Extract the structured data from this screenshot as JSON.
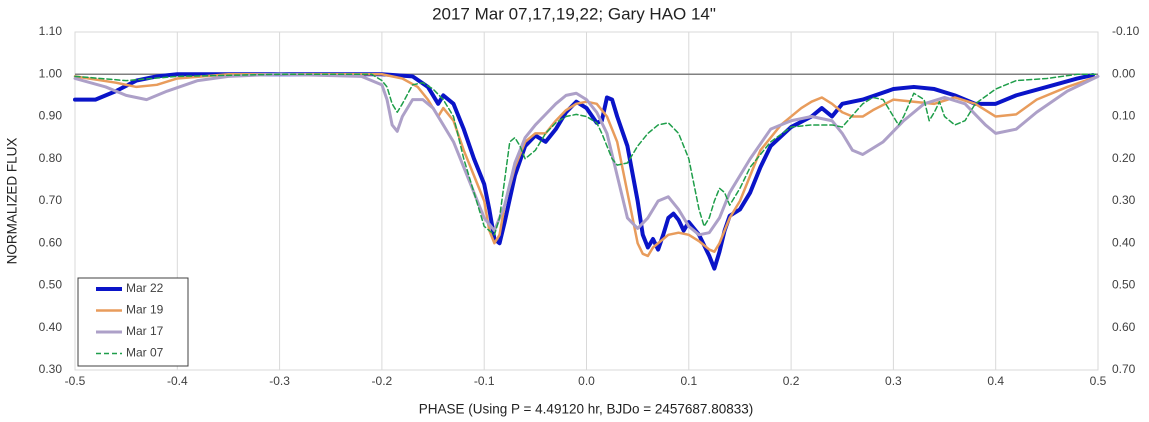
{
  "chart_data": {
    "type": "line",
    "title": "2017 Mar 07,17,19,22; Gary HAO 14\"",
    "x_label": "PHASE (Using P = 4.49120 hr, BJDo = 2457687.80833)",
    "y_label": "NORMALIZED FLUX",
    "xlim": [
      -0.5,
      0.5
    ],
    "xticks": [
      -0.5,
      -0.4,
      -0.3,
      -0.2,
      -0.1,
      {
        "value": 0,
        "label": "0.0"
      },
      0.1,
      0.2,
      0.3,
      0.4,
      0.5
    ],
    "ylim": [
      0.3,
      1.1
    ],
    "yticks": [
      {
        "value": 0.3,
        "label": "0.30"
      },
      {
        "value": 0.4,
        "label": "0.40"
      },
      {
        "value": 0.5,
        "label": "0.50"
      },
      {
        "value": 0.6,
        "label": "0.60"
      },
      {
        "value": 0.7,
        "label": "0.70"
      },
      {
        "value": 0.8,
        "label": "0.80"
      },
      {
        "value": 0.9,
        "label": "0.90"
      },
      {
        "value": 1.0,
        "label": "1.00"
      },
      {
        "value": 1.1,
        "label": "1.10"
      }
    ],
    "y2lim": [
      0.7,
      -0.1
    ],
    "y2ticks": [
      {
        "value": 0.7,
        "label": "0.70"
      },
      {
        "value": 0.6,
        "label": "0.60"
      },
      {
        "value": 0.5,
        "label": "0.50"
      },
      {
        "value": 0.4,
        "label": "0.40"
      },
      {
        "value": 0.3,
        "label": "0.30"
      },
      {
        "value": 0.2,
        "label": "0.20"
      },
      {
        "value": 0.1,
        "label": "0.10"
      },
      {
        "value": 0,
        "label": "0.00"
      },
      {
        "value": -0.1,
        "label": "-0.10"
      }
    ],
    "grid": "x",
    "hline": 1.0,
    "legend": "lower left",
    "series": [
      {
        "name": "Mar 22",
        "color": "#0a14c8",
        "line_width": 4,
        "dashed": false,
        "x": [
          -0.5,
          -0.48,
          -0.46,
          -0.44,
          -0.42,
          -0.4,
          -0.3,
          -0.2,
          -0.17,
          -0.155,
          -0.145,
          -0.14,
          -0.13,
          -0.12,
          -0.11,
          -0.1,
          -0.095,
          -0.09,
          -0.085,
          -0.08,
          -0.07,
          -0.06,
          -0.05,
          -0.04,
          -0.03,
          -0.02,
          -0.01,
          0,
          0.01,
          0.015,
          0.02,
          0.025,
          0.03,
          0.04,
          0.05,
          0.055,
          0.06,
          0.065,
          0.07,
          0.075,
          0.08,
          0.085,
          0.09,
          0.095,
          0.1,
          0.11,
          0.12,
          0.125,
          0.13,
          0.135,
          0.14,
          0.15,
          0.16,
          0.17,
          0.18,
          0.2,
          0.22,
          0.23,
          0.24,
          0.25,
          0.27,
          0.3,
          0.32,
          0.34,
          0.36,
          0.38,
          0.4,
          0.42,
          0.45,
          0.48,
          0.495
        ],
        "values": [
          0.94,
          0.94,
          0.96,
          0.985,
          0.995,
          1,
          1,
          1,
          0.995,
          0.97,
          0.93,
          0.95,
          0.93,
          0.87,
          0.8,
          0.74,
          0.68,
          0.61,
          0.6,
          0.65,
          0.76,
          0.83,
          0.855,
          0.84,
          0.87,
          0.91,
          0.935,
          0.92,
          0.885,
          0.89,
          0.945,
          0.94,
          0.9,
          0.83,
          0.7,
          0.62,
          0.59,
          0.61,
          0.585,
          0.62,
          0.66,
          0.67,
          0.655,
          0.63,
          0.65,
          0.62,
          0.57,
          0.54,
          0.58,
          0.63,
          0.665,
          0.68,
          0.72,
          0.78,
          0.83,
          0.875,
          0.9,
          0.92,
          0.9,
          0.93,
          0.94,
          0.965,
          0.97,
          0.965,
          0.95,
          0.93,
          0.93,
          0.95,
          0.97,
          0.99,
          0.998
        ]
      },
      {
        "name": "Mar 19",
        "color": "#e89c5c",
        "line_width": 2.5,
        "dashed": false,
        "x": [
          -0.5,
          -0.46,
          -0.44,
          -0.42,
          -0.4,
          -0.35,
          -0.2,
          -0.18,
          -0.165,
          -0.155,
          -0.145,
          -0.14,
          -0.13,
          -0.12,
          -0.11,
          -0.1,
          -0.095,
          -0.09,
          -0.085,
          -0.08,
          -0.07,
          -0.06,
          -0.05,
          -0.04,
          -0.03,
          -0.02,
          -0.01,
          0,
          0.01,
          0.02,
          0.03,
          0.04,
          0.05,
          0.055,
          0.06,
          0.065,
          0.07,
          0.08,
          0.09,
          0.1,
          0.11,
          0.12,
          0.125,
          0.13,
          0.14,
          0.15,
          0.16,
          0.17,
          0.19,
          0.21,
          0.22,
          0.23,
          0.24,
          0.25,
          0.26,
          0.27,
          0.28,
          0.3,
          0.32,
          0.34,
          0.36,
          0.38,
          0.4,
          0.42,
          0.44,
          0.47,
          0.5
        ],
        "values": [
          0.995,
          0.98,
          0.97,
          0.975,
          0.99,
          1,
          1,
          0.99,
          0.97,
          0.94,
          0.9,
          0.92,
          0.89,
          0.82,
          0.76,
          0.7,
          0.63,
          0.6,
          0.62,
          0.69,
          0.78,
          0.84,
          0.86,
          0.86,
          0.89,
          0.915,
          0.93,
          0.935,
          0.93,
          0.9,
          0.84,
          0.72,
          0.6,
          0.575,
          0.57,
          0.59,
          0.6,
          0.62,
          0.625,
          0.62,
          0.605,
          0.585,
          0.58,
          0.6,
          0.66,
          0.7,
          0.76,
          0.82,
          0.88,
          0.92,
          0.935,
          0.945,
          0.93,
          0.91,
          0.9,
          0.9,
          0.915,
          0.94,
          0.935,
          0.93,
          0.945,
          0.93,
          0.9,
          0.905,
          0.94,
          0.97,
          0.995
        ]
      },
      {
        "name": "Mar 17",
        "color": "#ada0c8",
        "line_width": 3,
        "dashed": false,
        "x": [
          -0.5,
          -0.47,
          -0.45,
          -0.43,
          -0.41,
          -0.38,
          -0.35,
          -0.3,
          -0.22,
          -0.2,
          -0.195,
          -0.19,
          -0.185,
          -0.18,
          -0.17,
          -0.16,
          -0.15,
          -0.14,
          -0.13,
          -0.12,
          -0.11,
          -0.1,
          -0.09,
          -0.08,
          -0.07,
          -0.06,
          -0.05,
          -0.04,
          -0.03,
          -0.02,
          -0.01,
          0,
          0.01,
          0.02,
          0.03,
          0.04,
          0.05,
          0.06,
          0.07,
          0.08,
          0.09,
          0.1,
          0.11,
          0.12,
          0.13,
          0.14,
          0.16,
          0.18,
          0.2,
          0.22,
          0.24,
          0.25,
          0.26,
          0.27,
          0.29,
          0.31,
          0.33,
          0.35,
          0.37,
          0.39,
          0.4,
          0.42,
          0.44,
          0.47,
          0.5
        ],
        "values": [
          0.99,
          0.97,
          0.95,
          0.94,
          0.96,
          0.985,
          0.995,
          1,
          0.995,
          0.975,
          0.94,
          0.88,
          0.865,
          0.9,
          0.94,
          0.94,
          0.92,
          0.88,
          0.84,
          0.78,
          0.72,
          0.66,
          0.63,
          0.69,
          0.79,
          0.85,
          0.88,
          0.905,
          0.93,
          0.95,
          0.955,
          0.94,
          0.91,
          0.86,
          0.76,
          0.66,
          0.635,
          0.66,
          0.7,
          0.71,
          0.68,
          0.64,
          0.62,
          0.625,
          0.66,
          0.72,
          0.8,
          0.87,
          0.89,
          0.9,
          0.89,
          0.86,
          0.82,
          0.81,
          0.84,
          0.89,
          0.93,
          0.945,
          0.93,
          0.88,
          0.86,
          0.87,
          0.91,
          0.96,
          0.995
        ]
      },
      {
        "name": "Mar 07",
        "color": "#1f9e4a",
        "line_width": 1.5,
        "dashed": true,
        "x": [
          -0.5,
          -0.45,
          -0.4,
          -0.3,
          -0.21,
          -0.2,
          -0.195,
          -0.19,
          -0.185,
          -0.18,
          -0.17,
          -0.16,
          -0.15,
          -0.14,
          -0.13,
          -0.12,
          -0.11,
          -0.1,
          -0.09,
          -0.085,
          -0.08,
          -0.075,
          -0.07,
          -0.065,
          -0.06,
          -0.05,
          -0.04,
          -0.03,
          -0.02,
          -0.01,
          0,
          0.01,
          0.015,
          0.02,
          0.025,
          0.03,
          0.04,
          0.05,
          0.06,
          0.07,
          0.08,
          0.09,
          0.1,
          0.11,
          0.115,
          0.12,
          0.125,
          0.13,
          0.135,
          0.14,
          0.15,
          0.16,
          0.18,
          0.2,
          0.22,
          0.24,
          0.25,
          0.27,
          0.28,
          0.29,
          0.3,
          0.305,
          0.31,
          0.32,
          0.33,
          0.335,
          0.34,
          0.345,
          0.35,
          0.36,
          0.37,
          0.38,
          0.4,
          0.42,
          0.45,
          0.48,
          0.5
        ],
        "values": [
          0.995,
          0.985,
          0.995,
          1,
          1,
          0.985,
          0.97,
          0.93,
          0.91,
          0.93,
          0.975,
          0.98,
          0.965,
          0.94,
          0.9,
          0.8,
          0.72,
          0.64,
          0.62,
          0.66,
          0.75,
          0.84,
          0.85,
          0.83,
          0.8,
          0.82,
          0.86,
          0.885,
          0.9,
          0.905,
          0.9,
          0.885,
          0.86,
          0.83,
          0.8,
          0.785,
          0.79,
          0.83,
          0.86,
          0.88,
          0.885,
          0.86,
          0.8,
          0.68,
          0.64,
          0.66,
          0.7,
          0.73,
          0.72,
          0.69,
          0.73,
          0.78,
          0.84,
          0.875,
          0.88,
          0.88,
          0.875,
          0.93,
          0.945,
          0.94,
          0.9,
          0.88,
          0.9,
          0.955,
          0.94,
          0.89,
          0.91,
          0.935,
          0.9,
          0.88,
          0.89,
          0.93,
          0.965,
          0.985,
          0.99,
          1,
          1
        ]
      }
    ]
  }
}
